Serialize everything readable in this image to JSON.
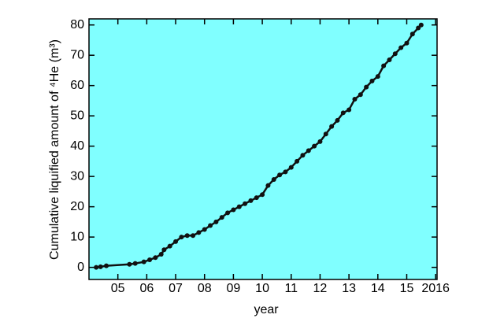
{
  "chart_data": {
    "type": "line",
    "x_label": "year",
    "y_label": "Cumulative liquified amount of ⁴He  (m³)",
    "background": "#80ffff",
    "xlim": [
      2004,
      2016.05
    ],
    "ylim": [
      -4,
      82
    ],
    "xticks": [
      {
        "value": 2005,
        "label": "05"
      },
      {
        "value": 2006,
        "label": "06"
      },
      {
        "value": 2007,
        "label": "07"
      },
      {
        "value": 2008,
        "label": "08"
      },
      {
        "value": 2009,
        "label": "09"
      },
      {
        "value": 2010,
        "label": "10"
      },
      {
        "value": 2011,
        "label": "11"
      },
      {
        "value": 2012,
        "label": "12"
      },
      {
        "value": 2013,
        "label": "13"
      },
      {
        "value": 2014,
        "label": "14"
      },
      {
        "value": 2015,
        "label": "15"
      },
      {
        "value": 2016,
        "label": "2016"
      }
    ],
    "yticks": [
      0,
      10,
      20,
      30,
      40,
      50,
      60,
      70,
      80
    ],
    "series": [
      {
        "color": "#111111",
        "x": [
          2004.25,
          2004.4,
          2004.6,
          2005.4,
          2005.6,
          2005.9,
          2006.1,
          2006.3,
          2006.5,
          2006.6,
          2006.8,
          2007.0,
          2007.2,
          2007.4,
          2007.6,
          2007.8,
          2008.0,
          2008.2,
          2008.4,
          2008.6,
          2008.8,
          2009.0,
          2009.2,
          2009.4,
          2009.6,
          2009.8,
          2010.0,
          2010.2,
          2010.4,
          2010.6,
          2010.8,
          2011.0,
          2011.2,
          2011.4,
          2011.6,
          2011.8,
          2012.0,
          2012.2,
          2012.4,
          2012.6,
          2012.8,
          2013.0,
          2013.2,
          2013.4,
          2013.6,
          2013.8,
          2014.0,
          2014.2,
          2014.4,
          2014.6,
          2014.8,
          2015.0,
          2015.2,
          2015.4,
          2015.5
        ],
        "values": [
          0,
          0.2,
          0.5,
          1.0,
          1.3,
          1.8,
          2.5,
          3.2,
          4.3,
          5.8,
          7,
          8.5,
          10,
          10.5,
          10.5,
          11.5,
          12.5,
          13.8,
          15,
          16.5,
          18,
          19,
          20,
          21,
          22,
          23,
          24,
          27,
          29,
          30.5,
          31.5,
          33,
          35,
          37,
          38.5,
          40,
          41.5,
          44,
          46.5,
          48.5,
          51,
          52,
          55.5,
          57,
          59.5,
          61.5,
          63,
          66.5,
          68.5,
          70.5,
          72.5,
          74,
          77,
          79,
          80
        ]
      }
    ]
  }
}
